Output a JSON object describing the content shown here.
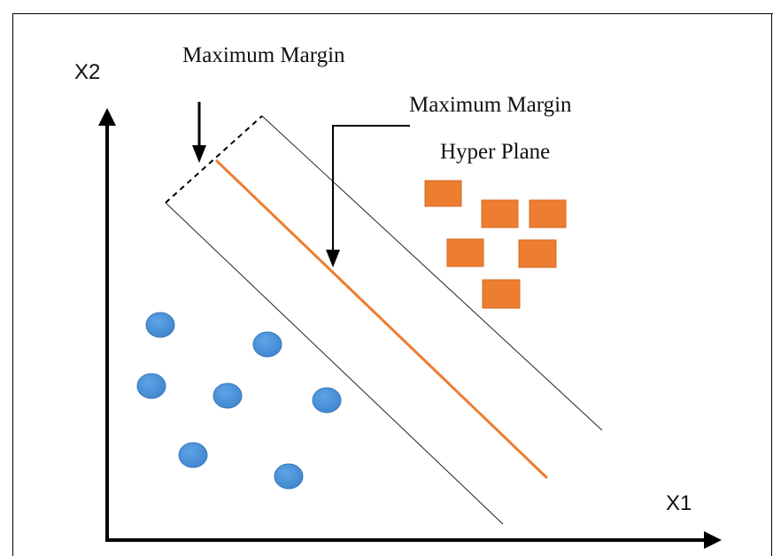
{
  "labels": {
    "maximum_margin_top": "Maximum Margin",
    "maximum_margin_right": "Maximum Margin",
    "hyper_plane": "Hyper Plane",
    "x_axis": "X1",
    "y_axis": "X2"
  },
  "colors": {
    "hyperplane": "#ed7d31",
    "square_fill": "#ed7d31",
    "square_edge": "#c55a11",
    "circle_fill": "#4a90d9",
    "circle_edge": "#3a78b8",
    "margin_line": "#222222",
    "axis": "#000000"
  }
}
